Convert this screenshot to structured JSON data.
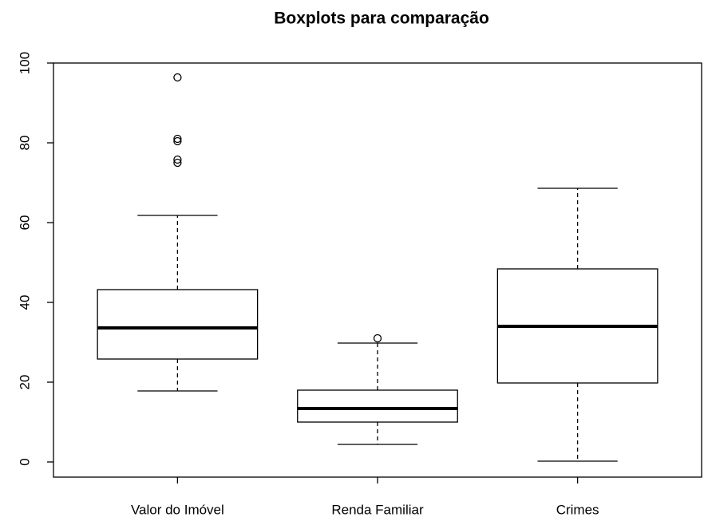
{
  "chart_data": {
    "type": "boxplot",
    "title": "Boxplots para comparação",
    "categories": [
      "Valor do Imóvel",
      "Renda Familiar",
      "Crimes"
    ],
    "boxes": [
      {
        "low": 17.8,
        "q1": 25.8,
        "median": 33.6,
        "q3": 43.2,
        "high": 61.8,
        "outliers": [
          96.4,
          81,
          80.4,
          75.8,
          75
        ]
      },
      {
        "low": 4.4,
        "q1": 10,
        "median": 13.4,
        "q3": 18,
        "high": 29.8,
        "outliers": [
          31
        ]
      },
      {
        "low": 0.2,
        "q1": 19.8,
        "median": 34,
        "q3": 48.4,
        "high": 68.6,
        "outliers": []
      }
    ],
    "ylim": [
      -3.8,
      100
    ],
    "yticks": [
      0,
      20,
      40,
      60,
      80,
      100
    ]
  }
}
